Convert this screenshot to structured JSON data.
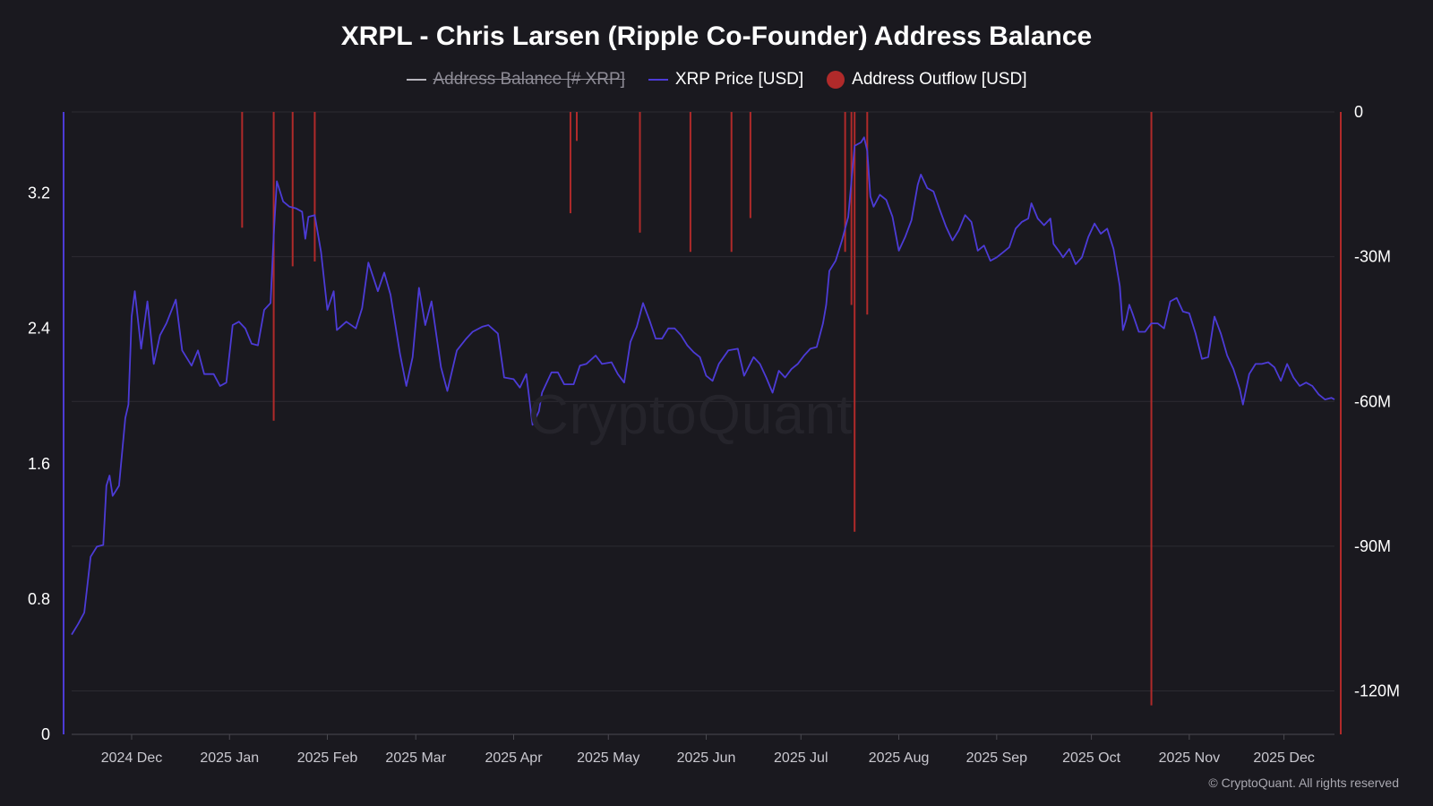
{
  "title": "XRPL - Chris Larsen (Ripple Co-Founder) Address Balance",
  "watermark": "CryptoQuant",
  "copyright": "© CryptoQuant. All rights reserved",
  "legend": [
    {
      "name": "legend-address-balance",
      "label": "Address Balance [# XRP]",
      "color": "#b8b6be",
      "style": "line",
      "disabled": true
    },
    {
      "name": "legend-xrp-price",
      "label": "XRP Price [USD]",
      "color": "#4c3bd6",
      "style": "line",
      "disabled": false
    },
    {
      "name": "legend-address-outflow",
      "label": "Address Outflow [USD]",
      "color": "#b02a2a",
      "style": "dot",
      "disabled": false
    }
  ],
  "colors": {
    "background": "#1a191f",
    "grid": "#2c2b32",
    "price": "#4c3bd6",
    "outflow": "#b02a2a",
    "left_axis": "#4c3bd6",
    "right_axis": "#b02a2a"
  },
  "chart_data": {
    "type": "line",
    "x_range": [
      "2024-11-12",
      "2025-12-17"
    ],
    "x_ticks": [
      {
        "label": "2024 Dec",
        "date": "2024-12-01"
      },
      {
        "label": "2025 Jan",
        "date": "2025-01-01"
      },
      {
        "label": "2025 Feb",
        "date": "2025-02-01"
      },
      {
        "label": "2025 Mar",
        "date": "2025-03-01"
      },
      {
        "label": "2025 Apr",
        "date": "2025-04-01"
      },
      {
        "label": "2025 May",
        "date": "2025-05-01"
      },
      {
        "label": "2025 Jun",
        "date": "2025-06-01"
      },
      {
        "label": "2025 Jul",
        "date": "2025-07-01"
      },
      {
        "label": "2025 Aug",
        "date": "2025-08-01"
      },
      {
        "label": "2025 Sep",
        "date": "2025-09-01"
      },
      {
        "label": "2025 Oct",
        "date": "2025-10-01"
      },
      {
        "label": "2025 Nov",
        "date": "2025-11-01"
      },
      {
        "label": "2025 Dec",
        "date": "2025-12-01"
      }
    ],
    "left_axis": {
      "label": "XRP Price [USD]",
      "ylim": [
        0,
        3.68
      ],
      "ticks": [
        "0",
        "0.8",
        "1.6",
        "2.4",
        "3.2"
      ],
      "tick_values": [
        0,
        0.8,
        1.6,
        2.4,
        3.2
      ]
    },
    "right_axis": {
      "label": "Address Outflow [USD]",
      "ylim": [
        -129000000,
        0
      ],
      "ticks": [
        "0",
        "-30M",
        "-60M",
        "-90M",
        "-120M"
      ],
      "tick_values": [
        0,
        -30000000,
        -60000000,
        -90000000,
        -120000000
      ]
    },
    "grid": true,
    "legend_position": "top-center",
    "series": [
      {
        "name": "XRP Price [USD]",
        "axis": "left",
        "points": [
          [
            "2024-11-12",
            0.59
          ],
          [
            "2024-11-14",
            0.65
          ],
          [
            "2024-11-16",
            0.72
          ],
          [
            "2024-11-18",
            1.05
          ],
          [
            "2024-11-20",
            1.11
          ],
          [
            "2024-11-22",
            1.12
          ],
          [
            "2024-11-23",
            1.47
          ],
          [
            "2024-11-24",
            1.53
          ],
          [
            "2024-11-25",
            1.41
          ],
          [
            "2024-11-27",
            1.47
          ],
          [
            "2024-11-29",
            1.87
          ],
          [
            "2024-11-30",
            1.95
          ],
          [
            "2024-12-01",
            2.47
          ],
          [
            "2024-12-02",
            2.62
          ],
          [
            "2024-12-04",
            2.28
          ],
          [
            "2024-12-06",
            2.56
          ],
          [
            "2024-12-08",
            2.19
          ],
          [
            "2024-12-10",
            2.36
          ],
          [
            "2024-12-12",
            2.43
          ],
          [
            "2024-12-15",
            2.57
          ],
          [
            "2024-12-17",
            2.27
          ],
          [
            "2024-12-20",
            2.18
          ],
          [
            "2024-12-22",
            2.27
          ],
          [
            "2024-12-24",
            2.13
          ],
          [
            "2024-12-27",
            2.13
          ],
          [
            "2024-12-29",
            2.06
          ],
          [
            "2024-12-31",
            2.08
          ],
          [
            "2025-01-02",
            2.42
          ],
          [
            "2025-01-04",
            2.44
          ],
          [
            "2025-01-06",
            2.4
          ],
          [
            "2025-01-08",
            2.31
          ],
          [
            "2025-01-10",
            2.3
          ],
          [
            "2025-01-12",
            2.51
          ],
          [
            "2025-01-14",
            2.55
          ],
          [
            "2025-01-15",
            2.95
          ],
          [
            "2025-01-16",
            3.27
          ],
          [
            "2025-01-18",
            3.15
          ],
          [
            "2025-01-20",
            3.12
          ],
          [
            "2025-01-22",
            3.11
          ],
          [
            "2025-01-24",
            3.09
          ],
          [
            "2025-01-25",
            2.93
          ],
          [
            "2025-01-26",
            3.06
          ],
          [
            "2025-01-28",
            3.07
          ],
          [
            "2025-01-30",
            2.85
          ],
          [
            "2025-02-01",
            2.51
          ],
          [
            "2025-02-03",
            2.62
          ],
          [
            "2025-02-04",
            2.39
          ],
          [
            "2025-02-07",
            2.44
          ],
          [
            "2025-02-10",
            2.4
          ],
          [
            "2025-02-12",
            2.52
          ],
          [
            "2025-02-14",
            2.79
          ],
          [
            "2025-02-17",
            2.62
          ],
          [
            "2025-02-19",
            2.73
          ],
          [
            "2025-02-21",
            2.6
          ],
          [
            "2025-02-24",
            2.25
          ],
          [
            "2025-02-26",
            2.06
          ],
          [
            "2025-02-28",
            2.23
          ],
          [
            "2025-03-02",
            2.64
          ],
          [
            "2025-03-04",
            2.42
          ],
          [
            "2025-03-06",
            2.56
          ],
          [
            "2025-03-09",
            2.17
          ],
          [
            "2025-03-11",
            2.03
          ],
          [
            "2025-03-14",
            2.27
          ],
          [
            "2025-03-17",
            2.34
          ],
          [
            "2025-03-19",
            2.38
          ],
          [
            "2025-03-22",
            2.41
          ],
          [
            "2025-03-24",
            2.42
          ],
          [
            "2025-03-27",
            2.37
          ],
          [
            "2025-03-29",
            2.11
          ],
          [
            "2025-04-01",
            2.1
          ],
          [
            "2025-04-03",
            2.05
          ],
          [
            "2025-04-05",
            2.13
          ],
          [
            "2025-04-07",
            1.83
          ],
          [
            "2025-04-09",
            1.91
          ],
          [
            "2025-04-10",
            2.02
          ],
          [
            "2025-04-13",
            2.14
          ],
          [
            "2025-04-15",
            2.14
          ],
          [
            "2025-04-17",
            2.07
          ],
          [
            "2025-04-20",
            2.07
          ],
          [
            "2025-04-22",
            2.18
          ],
          [
            "2025-04-24",
            2.19
          ],
          [
            "2025-04-27",
            2.24
          ],
          [
            "2025-04-29",
            2.19
          ],
          [
            "2025-05-02",
            2.2
          ],
          [
            "2025-05-04",
            2.13
          ],
          [
            "2025-05-06",
            2.08
          ],
          [
            "2025-05-08",
            2.32
          ],
          [
            "2025-05-10",
            2.41
          ],
          [
            "2025-05-12",
            2.55
          ],
          [
            "2025-05-14",
            2.45
          ],
          [
            "2025-05-16",
            2.34
          ],
          [
            "2025-05-18",
            2.34
          ],
          [
            "2025-05-20",
            2.4
          ],
          [
            "2025-05-22",
            2.4
          ],
          [
            "2025-05-24",
            2.36
          ],
          [
            "2025-05-26",
            2.3
          ],
          [
            "2025-05-28",
            2.26
          ],
          [
            "2025-05-30",
            2.23
          ],
          [
            "2025-06-01",
            2.12
          ],
          [
            "2025-06-03",
            2.09
          ],
          [
            "2025-06-05",
            2.19
          ],
          [
            "2025-06-08",
            2.27
          ],
          [
            "2025-06-11",
            2.28
          ],
          [
            "2025-06-13",
            2.12
          ],
          [
            "2025-06-16",
            2.23
          ],
          [
            "2025-06-18",
            2.19
          ],
          [
            "2025-06-20",
            2.11
          ],
          [
            "2025-06-22",
            2.02
          ],
          [
            "2025-06-24",
            2.15
          ],
          [
            "2025-06-26",
            2.11
          ],
          [
            "2025-06-28",
            2.16
          ],
          [
            "2025-06-30",
            2.19
          ],
          [
            "2025-07-02",
            2.24
          ],
          [
            "2025-07-04",
            2.28
          ],
          [
            "2025-07-06",
            2.29
          ],
          [
            "2025-07-08",
            2.43
          ],
          [
            "2025-07-09",
            2.54
          ],
          [
            "2025-07-10",
            2.74
          ],
          [
            "2025-07-12",
            2.8
          ],
          [
            "2025-07-14",
            2.92
          ],
          [
            "2025-07-16",
            3.06
          ],
          [
            "2025-07-18",
            3.48
          ],
          [
            "2025-07-20",
            3.5
          ],
          [
            "2025-07-21",
            3.53
          ],
          [
            "2025-07-22",
            3.45
          ],
          [
            "2025-07-23",
            3.18
          ],
          [
            "2025-07-24",
            3.12
          ],
          [
            "2025-07-26",
            3.19
          ],
          [
            "2025-07-28",
            3.16
          ],
          [
            "2025-07-30",
            3.06
          ],
          [
            "2025-08-01",
            2.86
          ],
          [
            "2025-08-03",
            2.94
          ],
          [
            "2025-08-05",
            3.04
          ],
          [
            "2025-08-07",
            3.25
          ],
          [
            "2025-08-08",
            3.31
          ],
          [
            "2025-08-10",
            3.23
          ],
          [
            "2025-08-12",
            3.21
          ],
          [
            "2025-08-14",
            3.1
          ],
          [
            "2025-08-16",
            3.0
          ],
          [
            "2025-08-18",
            2.92
          ],
          [
            "2025-08-20",
            2.98
          ],
          [
            "2025-08-22",
            3.07
          ],
          [
            "2025-08-24",
            3.03
          ],
          [
            "2025-08-26",
            2.86
          ],
          [
            "2025-08-28",
            2.89
          ],
          [
            "2025-08-30",
            2.8
          ],
          [
            "2025-09-01",
            2.82
          ],
          [
            "2025-09-03",
            2.85
          ],
          [
            "2025-09-05",
            2.88
          ],
          [
            "2025-09-07",
            2.99
          ],
          [
            "2025-09-09",
            3.03
          ],
          [
            "2025-09-11",
            3.05
          ],
          [
            "2025-09-12",
            3.14
          ],
          [
            "2025-09-14",
            3.05
          ],
          [
            "2025-09-16",
            3.01
          ],
          [
            "2025-09-18",
            3.05
          ],
          [
            "2025-09-19",
            2.9
          ],
          [
            "2025-09-21",
            2.85
          ],
          [
            "2025-09-22",
            2.82
          ],
          [
            "2025-09-24",
            2.87
          ],
          [
            "2025-09-26",
            2.78
          ],
          [
            "2025-09-28",
            2.82
          ],
          [
            "2025-09-30",
            2.94
          ],
          [
            "2025-10-02",
            3.02
          ],
          [
            "2025-10-04",
            2.96
          ],
          [
            "2025-10-06",
            2.99
          ],
          [
            "2025-10-08",
            2.87
          ],
          [
            "2025-10-10",
            2.65
          ],
          [
            "2025-10-11",
            2.39
          ],
          [
            "2025-10-12",
            2.45
          ],
          [
            "2025-10-13",
            2.54
          ],
          [
            "2025-10-14",
            2.49
          ],
          [
            "2025-10-16",
            2.38
          ],
          [
            "2025-10-18",
            2.38
          ],
          [
            "2025-10-20",
            2.43
          ],
          [
            "2025-10-22",
            2.43
          ],
          [
            "2025-10-24",
            2.4
          ],
          [
            "2025-10-26",
            2.56
          ],
          [
            "2025-10-28",
            2.58
          ],
          [
            "2025-10-30",
            2.5
          ],
          [
            "2025-11-01",
            2.49
          ],
          [
            "2025-11-03",
            2.37
          ],
          [
            "2025-11-05",
            2.22
          ],
          [
            "2025-11-07",
            2.23
          ],
          [
            "2025-11-09",
            2.47
          ],
          [
            "2025-11-11",
            2.37
          ],
          [
            "2025-11-13",
            2.24
          ],
          [
            "2025-11-15",
            2.16
          ],
          [
            "2025-11-17",
            2.04
          ],
          [
            "2025-11-18",
            1.95
          ],
          [
            "2025-11-20",
            2.13
          ],
          [
            "2025-11-22",
            2.19
          ],
          [
            "2025-11-24",
            2.19
          ],
          [
            "2025-11-26",
            2.2
          ],
          [
            "2025-11-28",
            2.17
          ],
          [
            "2025-11-30",
            2.09
          ],
          [
            "2025-12-02",
            2.19
          ],
          [
            "2025-12-04",
            2.11
          ],
          [
            "2025-12-06",
            2.06
          ],
          [
            "2025-12-08",
            2.08
          ],
          [
            "2025-12-10",
            2.06
          ],
          [
            "2025-12-12",
            2.01
          ],
          [
            "2025-12-14",
            1.98
          ],
          [
            "2025-12-16",
            1.99
          ],
          [
            "2025-12-17",
            1.98
          ]
        ]
      },
      {
        "name": "Address Outflow [USD]",
        "axis": "right",
        "type": "bar",
        "points": [
          [
            "2025-01-05",
            -24000000
          ],
          [
            "2025-01-15",
            -64000000
          ],
          [
            "2025-01-21",
            -32000000
          ],
          [
            "2025-01-28",
            -31000000
          ],
          [
            "2025-04-19",
            -21000000
          ],
          [
            "2025-04-21",
            -6000000
          ],
          [
            "2025-05-11",
            -25000000
          ],
          [
            "2025-05-27",
            -29000000
          ],
          [
            "2025-06-09",
            -29000000
          ],
          [
            "2025-06-15",
            -22000000
          ],
          [
            "2025-07-15",
            -29000000
          ],
          [
            "2025-07-17",
            -40000000
          ],
          [
            "2025-07-18",
            -87000000
          ],
          [
            "2025-07-22",
            -42000000
          ],
          [
            "2025-10-20",
            -123000000
          ]
        ]
      }
    ]
  }
}
